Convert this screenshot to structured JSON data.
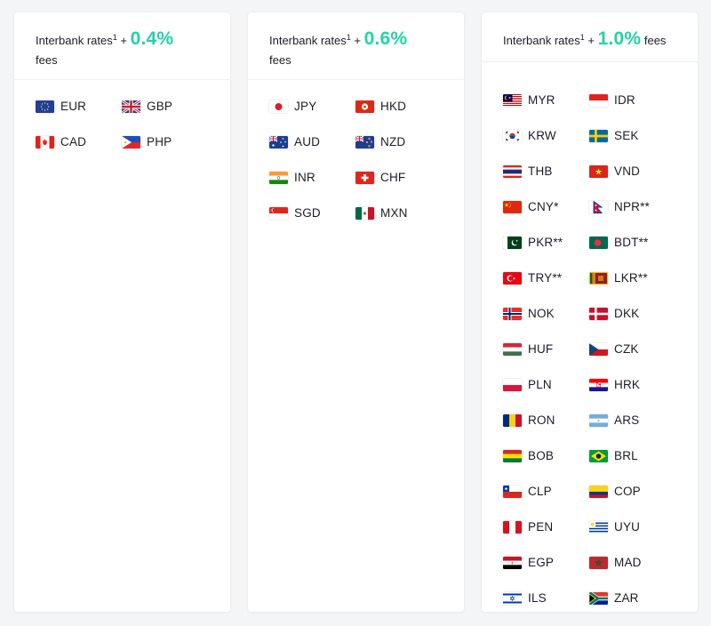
{
  "cards": [
    {
      "prefix": "Interbank rates",
      "sup": "1",
      "plus": " + ",
      "rate": "0.4%",
      "suffix": "fees",
      "currencies": [
        {
          "code": "EUR",
          "flag": "eu-flag-icon"
        },
        {
          "code": "GBP",
          "flag": "gb-flag-icon"
        },
        {
          "code": "CAD",
          "flag": "ca-flag-icon"
        },
        {
          "code": "PHP",
          "flag": "ph-flag-icon"
        }
      ]
    },
    {
      "prefix": "Interbank rates",
      "sup": "1",
      "plus": " + ",
      "rate": "0.6%",
      "suffix": "fees",
      "currencies": [
        {
          "code": "JPY",
          "flag": "jp-flag-icon"
        },
        {
          "code": "HKD",
          "flag": "hk-flag-icon"
        },
        {
          "code": "AUD",
          "flag": "au-flag-icon"
        },
        {
          "code": "NZD",
          "flag": "nz-flag-icon"
        },
        {
          "code": "INR",
          "flag": "in-flag-icon"
        },
        {
          "code": "CHF",
          "flag": "ch-flag-icon"
        },
        {
          "code": "SGD",
          "flag": "sg-flag-icon"
        },
        {
          "code": "MXN",
          "flag": "mx-flag-icon"
        }
      ]
    },
    {
      "prefix": "Interbank rates",
      "sup": "1",
      "plus": " + ",
      "rate": "1.0%",
      "suffix": "fees",
      "currencies": [
        {
          "code": "MYR",
          "flag": "my-flag-icon"
        },
        {
          "code": "IDR",
          "flag": "id-flag-icon"
        },
        {
          "code": "KRW",
          "flag": "kr-flag-icon"
        },
        {
          "code": "SEK",
          "flag": "se-flag-icon"
        },
        {
          "code": "THB",
          "flag": "th-flag-icon"
        },
        {
          "code": "VND",
          "flag": "vn-flag-icon"
        },
        {
          "code": "CNY*",
          "flag": "cn-flag-icon"
        },
        {
          "code": "NPR**",
          "flag": "np-flag-icon"
        },
        {
          "code": "PKR**",
          "flag": "pk-flag-icon"
        },
        {
          "code": "BDT**",
          "flag": "bd-flag-icon"
        },
        {
          "code": "TRY**",
          "flag": "tr-flag-icon"
        },
        {
          "code": "LKR**",
          "flag": "lk-flag-icon"
        },
        {
          "code": "NOK",
          "flag": "no-flag-icon"
        },
        {
          "code": "DKK",
          "flag": "dk-flag-icon"
        },
        {
          "code": "HUF",
          "flag": "hu-flag-icon"
        },
        {
          "code": "CZK",
          "flag": "cz-flag-icon"
        },
        {
          "code": "PLN",
          "flag": "pl-flag-icon"
        },
        {
          "code": "HRK",
          "flag": "hr-flag-icon"
        },
        {
          "code": "RON",
          "flag": "ro-flag-icon"
        },
        {
          "code": "ARS",
          "flag": "ar-flag-icon"
        },
        {
          "code": "BOB",
          "flag": "bo-flag-icon"
        },
        {
          "code": "BRL",
          "flag": "br-flag-icon"
        },
        {
          "code": "CLP",
          "flag": "cl-flag-icon"
        },
        {
          "code": "COP",
          "flag": "co-flag-icon"
        },
        {
          "code": "PEN",
          "flag": "pe-flag-icon"
        },
        {
          "code": "UYU",
          "flag": "uy-flag-icon"
        },
        {
          "code": "EGP",
          "flag": "eg-flag-icon"
        },
        {
          "code": "MAD",
          "flag": "ma-flag-icon"
        },
        {
          "code": "ILS",
          "flag": "il-flag-icon"
        },
        {
          "code": "ZAR",
          "flag": "za-flag-icon"
        }
      ]
    }
  ],
  "colors": {
    "accent": "#22d3a5",
    "text": "#1c1c28",
    "background": "#f4f5f7",
    "card": "#ffffff"
  }
}
